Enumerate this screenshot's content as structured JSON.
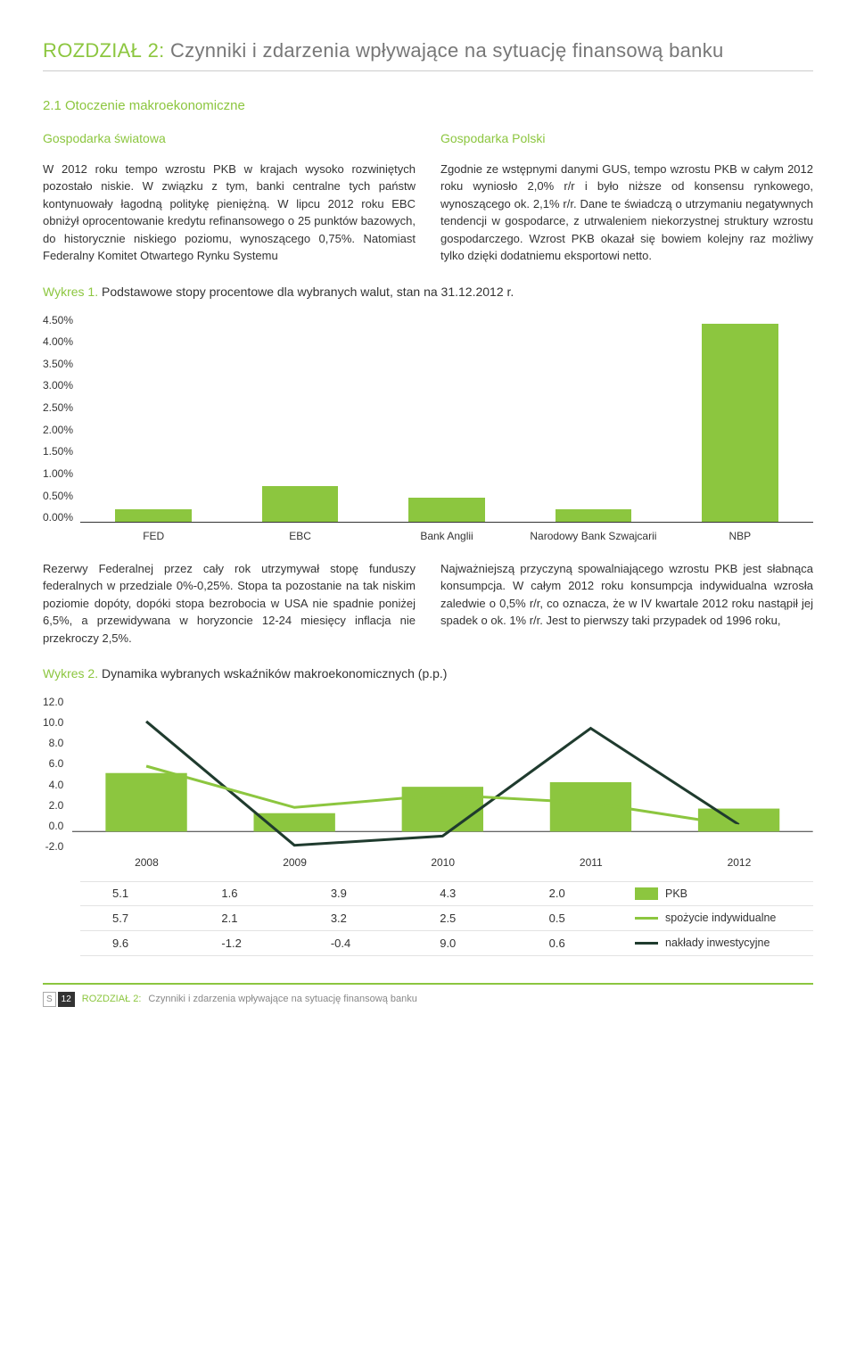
{
  "chapter": {
    "label": "ROZDZIAŁ 2:",
    "title": "Czynniki i zdarzenia wpływające na sytuację finansową banku"
  },
  "section_number": "2.1 Otoczenie makroekonomiczne",
  "left_col": {
    "heading": "Gospodarka światowa",
    "text": "W 2012 roku tempo wzrostu PKB w krajach wysoko rozwiniętych pozostało niskie. W związku z tym, banki centralne tych państw kontynuowały łagodną politykę pieniężną. W lipcu 2012 roku EBC obniżył oprocentowanie kredytu refinansowego o 25 punktów bazowych, do historycznie niskiego poziomu, wynoszącego 0,75%. Natomiast Federalny Komitet Otwartego Rynku Systemu"
  },
  "right_col": {
    "heading": "Gospodarka Polski",
    "text": "Zgodnie ze wstępnymi danymi GUS, tempo wzrostu PKB w całym 2012 roku wyniosło 2,0% r/r i było niższe od konsensu rynkowego, wynoszącego ok. 2,1% r/r. Dane te świadczą o utrzymaniu negatywnych tendencji w gospodarce, z utrwaleniem niekorzystnej struktury wzrostu gospodarczego. Wzrost PKB okazał się bowiem kolejny raz możliwy tylko dzięki dodatniemu eksportowi netto."
  },
  "chart1": {
    "title_prefix": "Wykres 1.",
    "title_rest": "Podstawowe stopy procentowe dla wybranych walut, stan na 31.12.2012 r.",
    "type": "bar",
    "y_labels": [
      "4.50%",
      "4.00%",
      "3.50%",
      "3.00%",
      "2.50%",
      "2.00%",
      "1.50%",
      "1.00%",
      "0.50%",
      "0.00%"
    ],
    "y_max": 4.5,
    "categories": [
      "FED",
      "EBC",
      "Bank Anglii",
      "Narodowy Bank Szwajcarii",
      "NBP"
    ],
    "values": [
      0.25,
      0.75,
      0.5,
      0.25,
      4.25
    ],
    "bar_color": "#8cc63f",
    "axis_color": "#333333",
    "label_fontsize": 12
  },
  "mid_left_text": "Rezerwy Federalnej przez cały rok utrzymywał stopę funduszy federalnych w przedziale 0%-0,25%. Stopa ta pozostanie na tak niskim poziomie dopóty, dopóki stopa bezrobocia w USA nie spadnie poniżej 6,5%, a przewidywana w horyzoncie 12-24 miesięcy inflacja nie przekroczy 2,5%.",
  "mid_right_text": "Najważniejszą przyczyną spowalniającego wzrostu PKB jest słabnąca konsumpcja. W całym 2012 roku konsumpcja indywidualna wzrosła zaledwie o 0,5% r/r, co oznacza, że w IV kwartale 2012 roku nastąpił jej spadek o ok. 1% r/r. Jest to pierwszy taki przypadek od 1996 roku,",
  "chart2": {
    "title_prefix": "Wykres 2.",
    "title_rest": "Dynamika wybranych wskaźników makroekonomicznych (p.p.)",
    "type": "bar_line_combo",
    "y_labels": [
      "12.0",
      "10.0",
      "8.0",
      "6.0",
      "4.0",
      "2.0",
      "0.0",
      "-2.0"
    ],
    "y_min": -2.0,
    "y_max": 12.0,
    "categories": [
      "2008",
      "2009",
      "2010",
      "2011",
      "2012"
    ],
    "bars": {
      "label": "PKB",
      "color": "#8cc63f",
      "values": [
        5.1,
        1.6,
        3.9,
        4.3,
        2.0
      ]
    },
    "line1": {
      "label": "spożycie indywidualne",
      "color": "#8cc63f",
      "width": 3,
      "values": [
        5.7,
        2.1,
        3.2,
        2.5,
        0.5
      ]
    },
    "line2": {
      "label": "nakłady inwestycyjne",
      "color": "#1f3b2e",
      "width": 3,
      "values": [
        9.6,
        -1.2,
        -0.4,
        9.0,
        0.6
      ]
    },
    "axis_color": "#333333"
  },
  "data_table": {
    "rows": [
      [
        "5.1",
        "1.6",
        "3.9",
        "4.3",
        "2.0"
      ],
      [
        "5.7",
        "2.1",
        "3.2",
        "2.5",
        "0.5"
      ],
      [
        "9.6",
        "-1.2",
        "-0.4",
        "9.0",
        "0.6"
      ]
    ],
    "legend": [
      {
        "type": "swatch",
        "color": "#8cc63f",
        "label": "PKB"
      },
      {
        "type": "line",
        "color": "#8cc63f",
        "label": "spożycie indywidualne"
      },
      {
        "type": "line",
        "color": "#1f3b2e",
        "label": "nakłady inwestycyjne"
      }
    ]
  },
  "footer": {
    "page_marker_s": "S",
    "page_number": "12",
    "chapter_label": "ROZDZIAŁ 2:",
    "chapter_title": "Czynniki i zdarzenia wpływające na sytuację finansową banku"
  }
}
